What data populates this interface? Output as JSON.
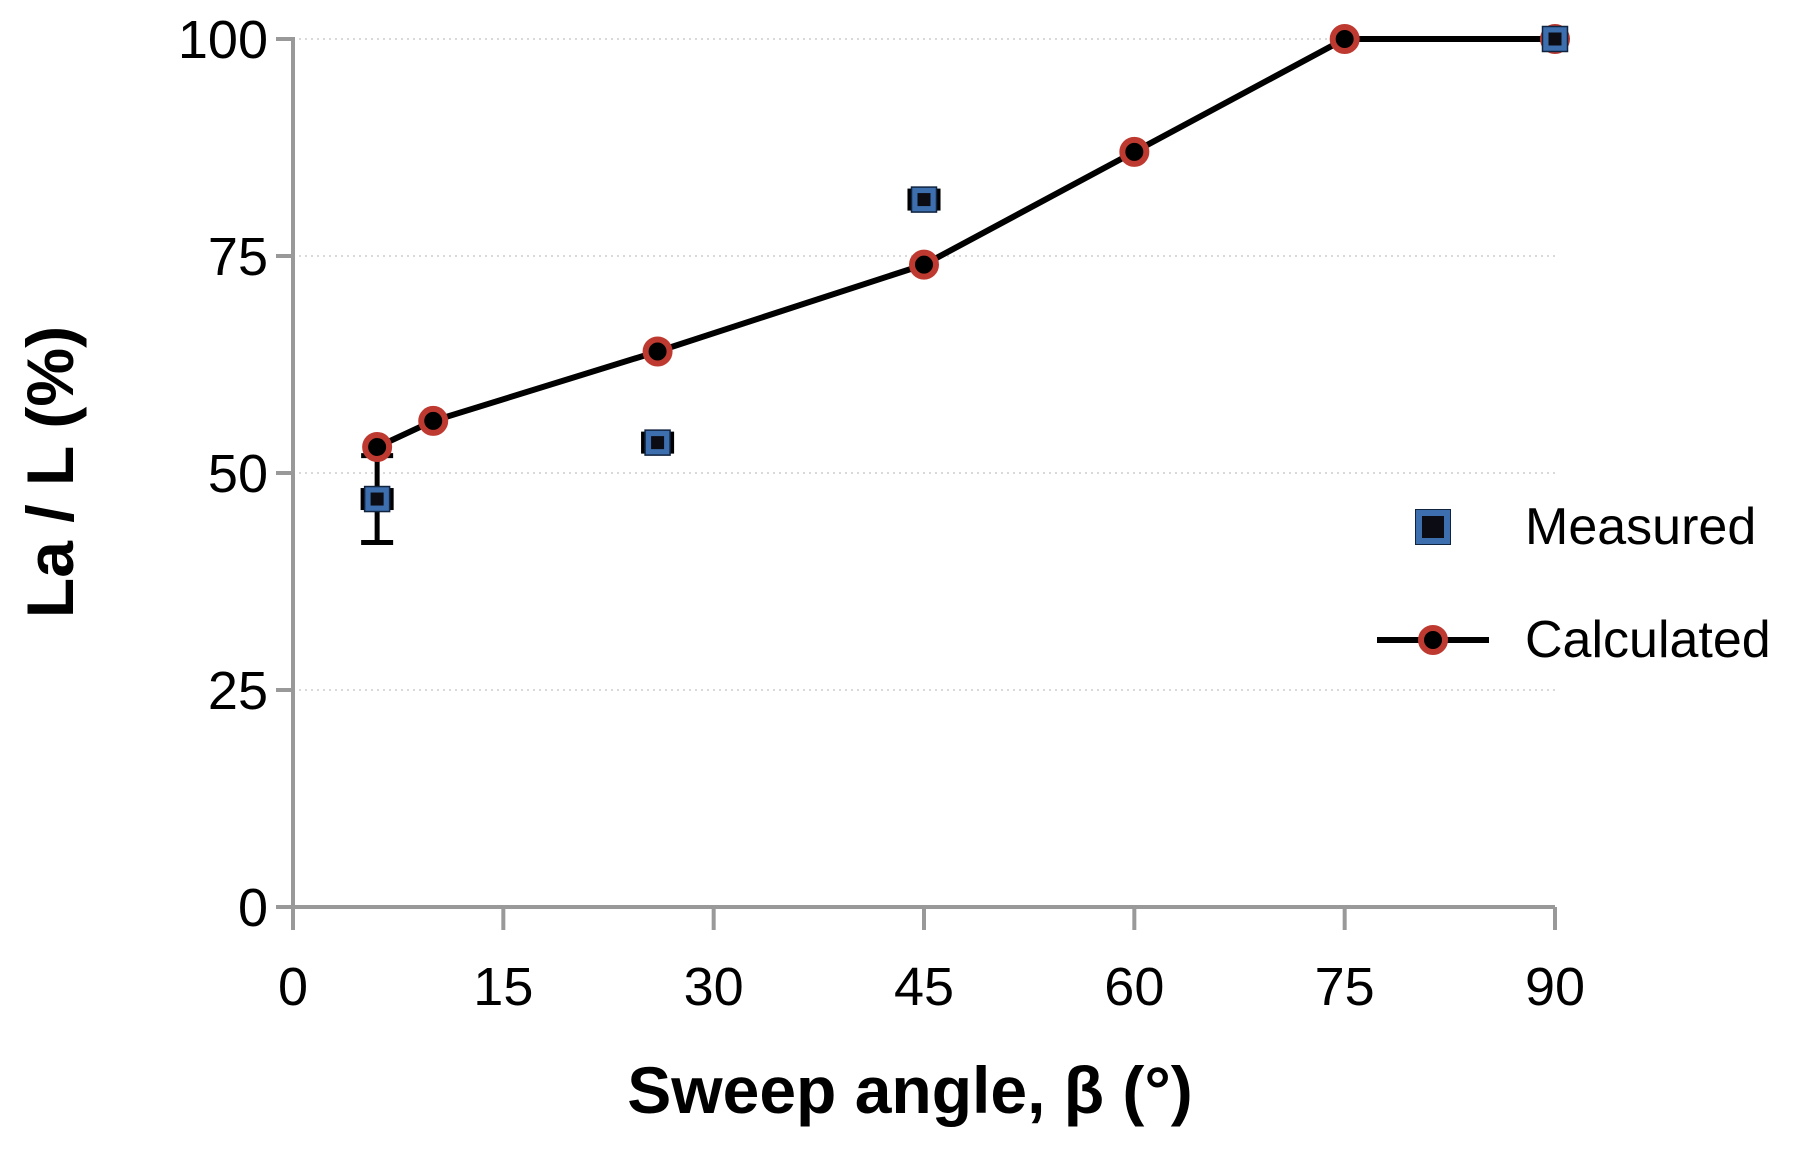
{
  "chart_data": {
    "type": "line",
    "title": "",
    "xlabel": "Sweep angle, β (°)",
    "ylabel": "La / L (%)",
    "xlim": [
      0,
      90
    ],
    "ylim": [
      0,
      100
    ],
    "x_ticks": [
      "0",
      "15",
      "30",
      "45",
      "60",
      "75",
      "90"
    ],
    "x_tick_values": [
      0,
      15,
      30,
      45,
      60,
      75,
      90
    ],
    "y_ticks": [
      "0",
      "25",
      "50",
      "75",
      "100"
    ],
    "y_tick_values": [
      0,
      25,
      50,
      75,
      100
    ],
    "grid": "horizontal dotted gridlines at 25, 50, 75, 100",
    "legend_position": "right-middle, no border",
    "series": [
      {
        "name": "Measured",
        "type": "scatter",
        "marker": "square",
        "marker_fill": "#0c0c14",
        "marker_edge": "#3d6eae",
        "points": [
          {
            "x": 6,
            "y": 47,
            "y_err_minus": 5,
            "y_err_plus": 5,
            "x_err": 1
          },
          {
            "x": 26,
            "y": 53.5,
            "x_err": 1
          },
          {
            "x": 45,
            "y": 81.5,
            "x_err": 1
          },
          {
            "x": 90,
            "y": 100
          }
        ]
      },
      {
        "name": "Calculated",
        "type": "line+marker",
        "marker": "circle",
        "marker_fill": "#000000",
        "marker_edge": "#be3a31",
        "line_color": "#000000",
        "points": [
          {
            "x": 6,
            "y": 53
          },
          {
            "x": 10,
            "y": 56
          },
          {
            "x": 26,
            "y": 64
          },
          {
            "x": 45,
            "y": 74
          },
          {
            "x": 60,
            "y": 87
          },
          {
            "x": 75,
            "y": 100
          },
          {
            "x": 90,
            "y": 100
          }
        ]
      }
    ],
    "colors": {
      "measured_blue": "#3d6eae",
      "calculated_red_ring": "#be3a31",
      "series_line": "#000000",
      "gridline": "#d9d9d9",
      "axis": "#999999",
      "text": "#000000"
    }
  }
}
